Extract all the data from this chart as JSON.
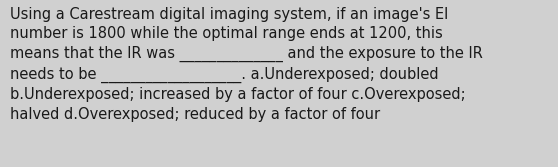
{
  "background_color": "#d0d0d0",
  "text_color": "#1a1a1a",
  "font_size": 10.5,
  "text": "Using a Carestream digital imaging system, if an image's EI\nnumber is 1800 while the optimal range ends at 1200, this\nmeans that the IR was ______________ and the exposure to the IR\nneeds to be ___________________. a.Underexposed; doubled\nb.Underexposed; increased by a factor of four c.Overexposed;\nhalved d.Overexposed; reduced by a factor of four",
  "figwidth": 5.58,
  "figheight": 1.67,
  "dpi": 100
}
